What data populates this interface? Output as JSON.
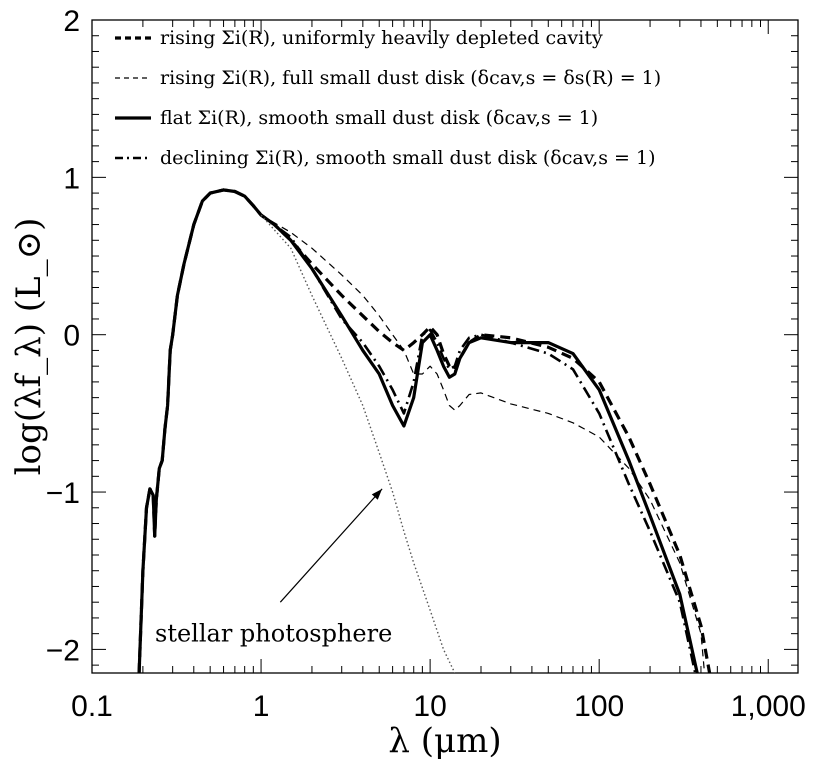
{
  "chart_data": {
    "type": "line",
    "xscale": "log",
    "xlim": [
      0.1,
      1500
    ],
    "ylim": [
      -2.15,
      2.0
    ],
    "xlabel": "λ (μm)",
    "ylabel": "log(λf_λ) (L_⊙)",
    "x_ticks": [
      {
        "value": 0.1,
        "label": "0.1"
      },
      {
        "value": 1,
        "label": "1"
      },
      {
        "value": 10,
        "label": "10"
      },
      {
        "value": 100,
        "label": "100"
      },
      {
        "value": 1000,
        "label": "1,000"
      }
    ],
    "y_ticks": [
      {
        "value": 2,
        "label": "2"
      },
      {
        "value": 1,
        "label": "1"
      },
      {
        "value": 0,
        "label": "0"
      },
      {
        "value": -1,
        "label": "−1"
      },
      {
        "value": -2,
        "label": "−2"
      }
    ],
    "legend_position": "top-left",
    "series": [
      {
        "name": "rising Σi(R), uniformly heavily depleted cavity",
        "style": "thick-dashed",
        "points": [
          [
            0.19,
            -2.15
          ],
          [
            0.2,
            -1.5
          ],
          [
            0.21,
            -1.1
          ],
          [
            0.22,
            -0.98
          ],
          [
            0.23,
            -1.02
          ],
          [
            0.235,
            -1.28
          ],
          [
            0.24,
            -1.05
          ],
          [
            0.25,
            -0.85
          ],
          [
            0.26,
            -0.8
          ],
          [
            0.27,
            -0.6
          ],
          [
            0.28,
            -0.45
          ],
          [
            0.29,
            -0.1
          ],
          [
            0.3,
            -0.0
          ],
          [
            0.32,
            0.25
          ],
          [
            0.35,
            0.45
          ],
          [
            0.4,
            0.7
          ],
          [
            0.45,
            0.85
          ],
          [
            0.5,
            0.9
          ],
          [
            0.6,
            0.92
          ],
          [
            0.7,
            0.91
          ],
          [
            0.8,
            0.88
          ],
          [
            0.9,
            0.82
          ],
          [
            1.0,
            0.76
          ],
          [
            1.2,
            0.7
          ],
          [
            1.5,
            0.6
          ],
          [
            2.0,
            0.45
          ],
          [
            3.0,
            0.25
          ],
          [
            4.0,
            0.12
          ],
          [
            5.0,
            0.02
          ],
          [
            6.0,
            -0.05
          ],
          [
            7.0,
            -0.1
          ],
          [
            8.0,
            -0.05
          ],
          [
            9.0,
            0.0
          ],
          [
            10.0,
            0.05
          ],
          [
            11.0,
            0.0
          ],
          [
            12.0,
            -0.12
          ],
          [
            13.0,
            -0.2
          ],
          [
            14.0,
            -0.22
          ],
          [
            15.0,
            -0.15
          ],
          [
            17.0,
            -0.05
          ],
          [
            20.0,
            0.0
          ],
          [
            30.0,
            -0.02
          ],
          [
            50.0,
            -0.08
          ],
          [
            70.0,
            -0.15
          ],
          [
            100.0,
            -0.3
          ],
          [
            150.0,
            -0.65
          ],
          [
            200.0,
            -0.95
          ],
          [
            300.0,
            -1.4
          ],
          [
            400.0,
            -1.85
          ],
          [
            450.0,
            -2.15
          ]
        ]
      },
      {
        "name": "rising Σi(R), full small dust disk (δcav,s = δs(R) = 1)",
        "style": "thin-dashed",
        "points": [
          [
            1.0,
            0.76
          ],
          [
            1.5,
            0.65
          ],
          [
            2.0,
            0.55
          ],
          [
            3.0,
            0.38
          ],
          [
            4.0,
            0.25
          ],
          [
            5.0,
            0.12
          ],
          [
            6.0,
            0.0
          ],
          [
            7.0,
            -0.1
          ],
          [
            8.0,
            -0.25
          ],
          [
            9.0,
            -0.25
          ],
          [
            10.0,
            -0.2
          ],
          [
            11.0,
            -0.25
          ],
          [
            12.0,
            -0.35
          ],
          [
            13.0,
            -0.45
          ],
          [
            14.0,
            -0.48
          ],
          [
            15.0,
            -0.45
          ],
          [
            17.0,
            -0.38
          ],
          [
            20.0,
            -0.37
          ],
          [
            30.0,
            -0.44
          ],
          [
            50.0,
            -0.5
          ],
          [
            70.0,
            -0.56
          ],
          [
            100.0,
            -0.65
          ],
          [
            150.0,
            -0.85
          ],
          [
            200.0,
            -1.05
          ],
          [
            300.0,
            -1.45
          ],
          [
            400.0,
            -1.9
          ],
          [
            420.0,
            -2.15
          ]
        ]
      },
      {
        "name": "flat Σi(R), smooth small dust disk (δcav,s = 1)",
        "style": "thick-solid",
        "points": [
          [
            0.19,
            -2.15
          ],
          [
            0.2,
            -1.5
          ],
          [
            0.21,
            -1.1
          ],
          [
            0.22,
            -0.98
          ],
          [
            0.23,
            -1.02
          ],
          [
            0.235,
            -1.28
          ],
          [
            0.24,
            -1.05
          ],
          [
            0.25,
            -0.85
          ],
          [
            0.26,
            -0.8
          ],
          [
            0.27,
            -0.6
          ],
          [
            0.28,
            -0.45
          ],
          [
            0.29,
            -0.1
          ],
          [
            0.3,
            -0.0
          ],
          [
            0.32,
            0.25
          ],
          [
            0.35,
            0.45
          ],
          [
            0.4,
            0.7
          ],
          [
            0.45,
            0.85
          ],
          [
            0.5,
            0.9
          ],
          [
            0.6,
            0.92
          ],
          [
            0.7,
            0.91
          ],
          [
            0.8,
            0.88
          ],
          [
            0.9,
            0.82
          ],
          [
            1.0,
            0.76
          ],
          [
            1.2,
            0.7
          ],
          [
            1.5,
            0.6
          ],
          [
            2.0,
            0.42
          ],
          [
            3.0,
            0.12
          ],
          [
            4.0,
            -0.1
          ],
          [
            5.0,
            -0.25
          ],
          [
            6.0,
            -0.45
          ],
          [
            7.0,
            -0.58
          ],
          [
            8.0,
            -0.4
          ],
          [
            9.0,
            -0.05
          ],
          [
            10.0,
            0.0
          ],
          [
            11.0,
            -0.1
          ],
          [
            12.0,
            -0.2
          ],
          [
            13.0,
            -0.27
          ],
          [
            14.0,
            -0.25
          ],
          [
            15.0,
            -0.15
          ],
          [
            17.0,
            -0.05
          ],
          [
            20.0,
            -0.02
          ],
          [
            30.0,
            -0.05
          ],
          [
            50.0,
            -0.05
          ],
          [
            70.0,
            -0.12
          ],
          [
            100.0,
            -0.35
          ],
          [
            150.0,
            -0.8
          ],
          [
            200.0,
            -1.15
          ],
          [
            300.0,
            -1.65
          ],
          [
            380.0,
            -2.15
          ]
        ]
      },
      {
        "name": "declining Σi(R), smooth small dust disk (δcav,s = 1)",
        "style": "dash-dot",
        "points": [
          [
            1.0,
            0.76
          ],
          [
            1.5,
            0.62
          ],
          [
            2.0,
            0.42
          ],
          [
            3.0,
            0.1
          ],
          [
            4.0,
            -0.05
          ],
          [
            5.0,
            -0.2
          ],
          [
            6.0,
            -0.35
          ],
          [
            7.0,
            -0.5
          ],
          [
            8.0,
            -0.3
          ],
          [
            9.0,
            0.0
          ],
          [
            10.0,
            0.03
          ],
          [
            11.0,
            -0.05
          ],
          [
            12.0,
            -0.15
          ],
          [
            13.0,
            -0.22
          ],
          [
            14.0,
            -0.2
          ],
          [
            15.0,
            -0.1
          ],
          [
            17.0,
            -0.02
          ],
          [
            20.0,
            0.0
          ],
          [
            30.0,
            -0.05
          ],
          [
            50.0,
            -0.12
          ],
          [
            70.0,
            -0.22
          ],
          [
            100.0,
            -0.5
          ],
          [
            150.0,
            -0.95
          ],
          [
            200.0,
            -1.25
          ],
          [
            300.0,
            -1.7
          ],
          [
            370.0,
            -2.15
          ]
        ]
      },
      {
        "name": "stellar photosphere",
        "style": "dotted",
        "points": [
          [
            1.0,
            0.76
          ],
          [
            1.5,
            0.55
          ],
          [
            2.0,
            0.25
          ],
          [
            3.0,
            -0.15
          ],
          [
            4.0,
            -0.45
          ],
          [
            5.0,
            -0.75
          ],
          [
            6.0,
            -1.0
          ],
          [
            7.0,
            -1.25
          ],
          [
            8.0,
            -1.45
          ],
          [
            10.0,
            -1.75
          ],
          [
            12.0,
            -2.0
          ],
          [
            14.0,
            -2.15
          ]
        ]
      }
    ],
    "annotations": [
      {
        "text": "stellar photosphere",
        "arrow_from": [
          1.3,
          -1.7
        ],
        "arrow_to": [
          5.2,
          -0.98
        ],
        "text_anchor_x": 0.3,
        "text_anchor_y": -1.9
      }
    ]
  }
}
